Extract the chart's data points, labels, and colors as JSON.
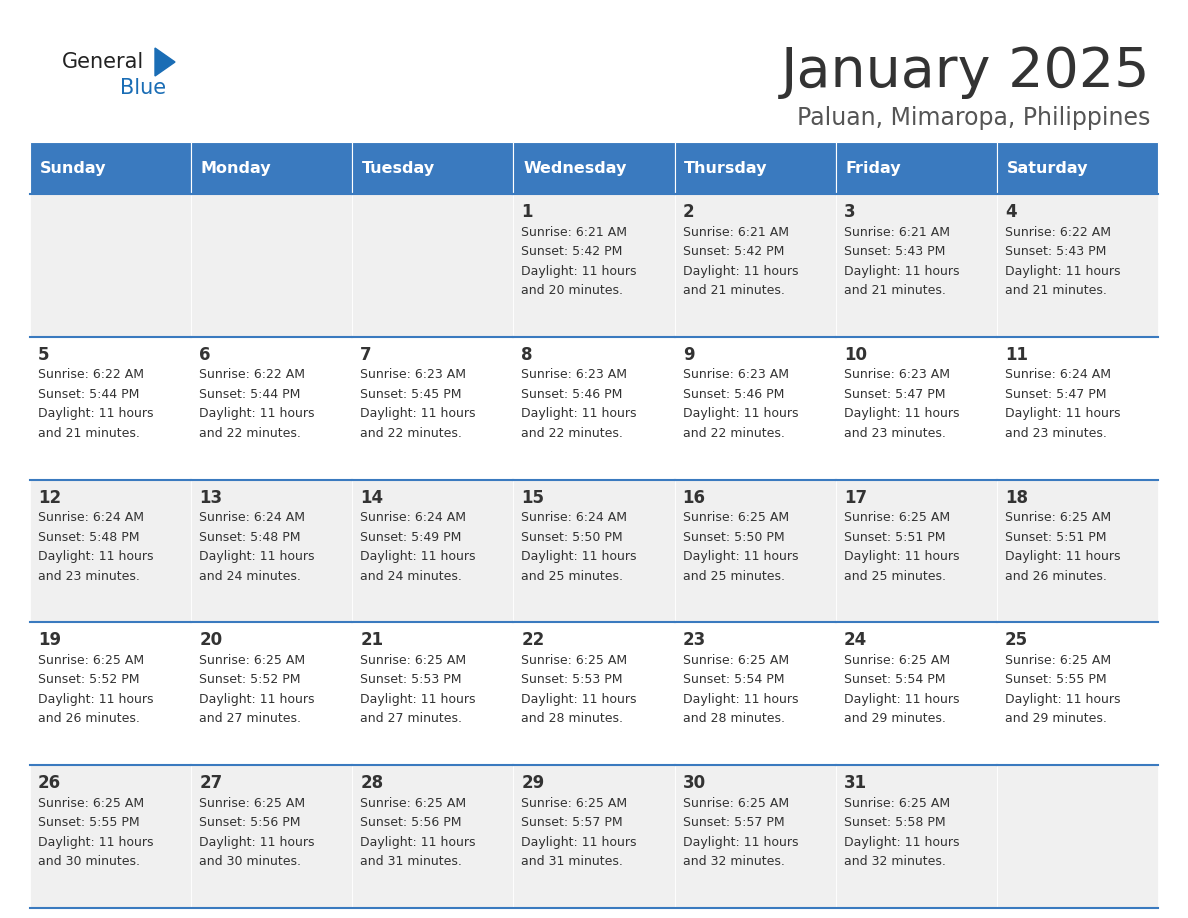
{
  "title": "January 2025",
  "subtitle": "Paluan, Mimaropa, Philippines",
  "days_of_week": [
    "Sunday",
    "Monday",
    "Tuesday",
    "Wednesday",
    "Thursday",
    "Friday",
    "Saturday"
  ],
  "header_bg": "#3a7abf",
  "header_text_color": "#ffffff",
  "cell_bg_odd": "#f0f0f0",
  "cell_bg_even": "#ffffff",
  "cell_border_color": "#3a7abf",
  "day_number_color": "#333333",
  "text_color": "#333333",
  "title_color": "#333333",
  "subtitle_color": "#555555",
  "logo_general_color": "#222222",
  "logo_blue_color": "#1a6db5",
  "weeks": [
    [
      {
        "day": 0
      },
      {
        "day": 0
      },
      {
        "day": 0
      },
      {
        "day": 1,
        "sunrise": "6:21 AM",
        "sunset": "5:42 PM",
        "dl1": "Daylight: 11 hours",
        "dl2": "and 20 minutes."
      },
      {
        "day": 2,
        "sunrise": "6:21 AM",
        "sunset": "5:42 PM",
        "dl1": "Daylight: 11 hours",
        "dl2": "and 21 minutes."
      },
      {
        "day": 3,
        "sunrise": "6:21 AM",
        "sunset": "5:43 PM",
        "dl1": "Daylight: 11 hours",
        "dl2": "and 21 minutes."
      },
      {
        "day": 4,
        "sunrise": "6:22 AM",
        "sunset": "5:43 PM",
        "dl1": "Daylight: 11 hours",
        "dl2": "and 21 minutes."
      }
    ],
    [
      {
        "day": 5,
        "sunrise": "6:22 AM",
        "sunset": "5:44 PM",
        "dl1": "Daylight: 11 hours",
        "dl2": "and 21 minutes."
      },
      {
        "day": 6,
        "sunrise": "6:22 AM",
        "sunset": "5:44 PM",
        "dl1": "Daylight: 11 hours",
        "dl2": "and 22 minutes."
      },
      {
        "day": 7,
        "sunrise": "6:23 AM",
        "sunset": "5:45 PM",
        "dl1": "Daylight: 11 hours",
        "dl2": "and 22 minutes."
      },
      {
        "day": 8,
        "sunrise": "6:23 AM",
        "sunset": "5:46 PM",
        "dl1": "Daylight: 11 hours",
        "dl2": "and 22 minutes."
      },
      {
        "day": 9,
        "sunrise": "6:23 AM",
        "sunset": "5:46 PM",
        "dl1": "Daylight: 11 hours",
        "dl2": "and 22 minutes."
      },
      {
        "day": 10,
        "sunrise": "6:23 AM",
        "sunset": "5:47 PM",
        "dl1": "Daylight: 11 hours",
        "dl2": "and 23 minutes."
      },
      {
        "day": 11,
        "sunrise": "6:24 AM",
        "sunset": "5:47 PM",
        "dl1": "Daylight: 11 hours",
        "dl2": "and 23 minutes."
      }
    ],
    [
      {
        "day": 12,
        "sunrise": "6:24 AM",
        "sunset": "5:48 PM",
        "dl1": "Daylight: 11 hours",
        "dl2": "and 23 minutes."
      },
      {
        "day": 13,
        "sunrise": "6:24 AM",
        "sunset": "5:48 PM",
        "dl1": "Daylight: 11 hours",
        "dl2": "and 24 minutes."
      },
      {
        "day": 14,
        "sunrise": "6:24 AM",
        "sunset": "5:49 PM",
        "dl1": "Daylight: 11 hours",
        "dl2": "and 24 minutes."
      },
      {
        "day": 15,
        "sunrise": "6:24 AM",
        "sunset": "5:50 PM",
        "dl1": "Daylight: 11 hours",
        "dl2": "and 25 minutes."
      },
      {
        "day": 16,
        "sunrise": "6:25 AM",
        "sunset": "5:50 PM",
        "dl1": "Daylight: 11 hours",
        "dl2": "and 25 minutes."
      },
      {
        "day": 17,
        "sunrise": "6:25 AM",
        "sunset": "5:51 PM",
        "dl1": "Daylight: 11 hours",
        "dl2": "and 25 minutes."
      },
      {
        "day": 18,
        "sunrise": "6:25 AM",
        "sunset": "5:51 PM",
        "dl1": "Daylight: 11 hours",
        "dl2": "and 26 minutes."
      }
    ],
    [
      {
        "day": 19,
        "sunrise": "6:25 AM",
        "sunset": "5:52 PM",
        "dl1": "Daylight: 11 hours",
        "dl2": "and 26 minutes."
      },
      {
        "day": 20,
        "sunrise": "6:25 AM",
        "sunset": "5:52 PM",
        "dl1": "Daylight: 11 hours",
        "dl2": "and 27 minutes."
      },
      {
        "day": 21,
        "sunrise": "6:25 AM",
        "sunset": "5:53 PM",
        "dl1": "Daylight: 11 hours",
        "dl2": "and 27 minutes."
      },
      {
        "day": 22,
        "sunrise": "6:25 AM",
        "sunset": "5:53 PM",
        "dl1": "Daylight: 11 hours",
        "dl2": "and 28 minutes."
      },
      {
        "day": 23,
        "sunrise": "6:25 AM",
        "sunset": "5:54 PM",
        "dl1": "Daylight: 11 hours",
        "dl2": "and 28 minutes."
      },
      {
        "day": 24,
        "sunrise": "6:25 AM",
        "sunset": "5:54 PM",
        "dl1": "Daylight: 11 hours",
        "dl2": "and 29 minutes."
      },
      {
        "day": 25,
        "sunrise": "6:25 AM",
        "sunset": "5:55 PM",
        "dl1": "Daylight: 11 hours",
        "dl2": "and 29 minutes."
      }
    ],
    [
      {
        "day": 26,
        "sunrise": "6:25 AM",
        "sunset": "5:55 PM",
        "dl1": "Daylight: 11 hours",
        "dl2": "and 30 minutes."
      },
      {
        "day": 27,
        "sunrise": "6:25 AM",
        "sunset": "5:56 PM",
        "dl1": "Daylight: 11 hours",
        "dl2": "and 30 minutes."
      },
      {
        "day": 28,
        "sunrise": "6:25 AM",
        "sunset": "5:56 PM",
        "dl1": "Daylight: 11 hours",
        "dl2": "and 31 minutes."
      },
      {
        "day": 29,
        "sunrise": "6:25 AM",
        "sunset": "5:57 PM",
        "dl1": "Daylight: 11 hours",
        "dl2": "and 31 minutes."
      },
      {
        "day": 30,
        "sunrise": "6:25 AM",
        "sunset": "5:57 PM",
        "dl1": "Daylight: 11 hours",
        "dl2": "and 32 minutes."
      },
      {
        "day": 31,
        "sunrise": "6:25 AM",
        "sunset": "5:58 PM",
        "dl1": "Daylight: 11 hours",
        "dl2": "and 32 minutes."
      },
      {
        "day": 0
      }
    ]
  ]
}
